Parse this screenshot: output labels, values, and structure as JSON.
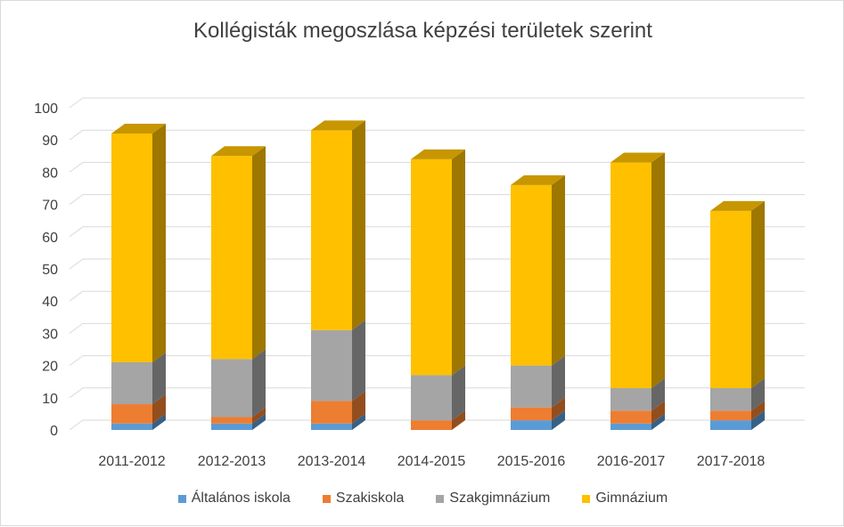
{
  "chart_data": {
    "type": "bar",
    "stacked": true,
    "three_d": true,
    "title": "Kollégisták megoszlása képzési területek szerint",
    "categories": [
      "2011-2012",
      "2012-2013",
      "2013-2014",
      "2014-2015",
      "2015-2016",
      "2016-2017",
      "2017-2018"
    ],
    "series": [
      {
        "name": "Általános iskola",
        "color": "#5b9bd5",
        "values": [
          2,
          2,
          2,
          0,
          3,
          2,
          3
        ]
      },
      {
        "name": "Szakiskola",
        "color": "#ed7d31",
        "values": [
          6,
          2,
          7,
          3,
          4,
          4,
          3
        ]
      },
      {
        "name": "Szakgimnázium",
        "color": "#a5a5a5",
        "values": [
          13,
          18,
          22,
          14,
          13,
          7,
          7
        ]
      },
      {
        "name": "Gimnázium",
        "color": "#ffc000",
        "values": [
          71,
          63,
          62,
          67,
          56,
          70,
          55
        ]
      }
    ],
    "ylim": [
      0,
      100
    ],
    "yticks": [
      0,
      10,
      20,
      30,
      40,
      50,
      60,
      70,
      80,
      90,
      100
    ],
    "grid": true,
    "legend_position": "bottom"
  }
}
